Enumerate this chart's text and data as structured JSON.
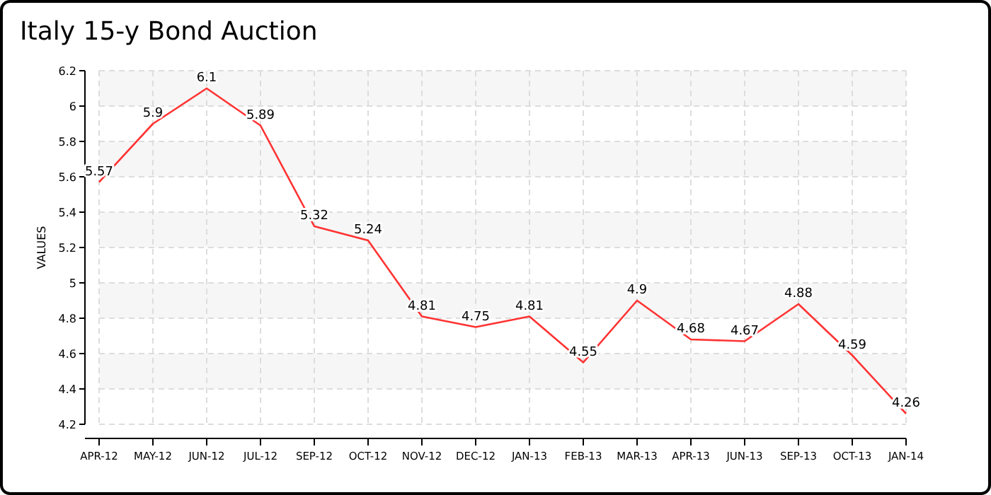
{
  "chart_data": {
    "type": "line",
    "title": "Italy 15-y Bond Auction",
    "ylabel": "VALUES",
    "categories": [
      "APR-12",
      "MAY-12",
      "JUN-12",
      "JUL-12",
      "SEP-12",
      "OCT-12",
      "NOV-12",
      "DEC-12",
      "JAN-13",
      "FEB-13",
      "MAR-13",
      "APR-13",
      "JUN-13",
      "SEP-13",
      "OCT-13",
      "JAN-14"
    ],
    "series": [
      {
        "color": "#ff3333",
        "values": [
          5.57,
          5.9,
          6.1,
          5.89,
          5.32,
          5.24,
          4.81,
          4.75,
          4.81,
          4.55,
          4.9,
          4.68,
          4.67,
          4.88,
          4.59,
          4.26
        ]
      }
    ],
    "ylim": [
      4.2,
      6.2
    ],
    "yticks": [
      4.2,
      4.4,
      4.6,
      4.8,
      5,
      5.2,
      5.4,
      5.6,
      5.8,
      6,
      6.2
    ],
    "grid": true,
    "data_labels": true,
    "marker": "none",
    "line_style": "solid"
  }
}
